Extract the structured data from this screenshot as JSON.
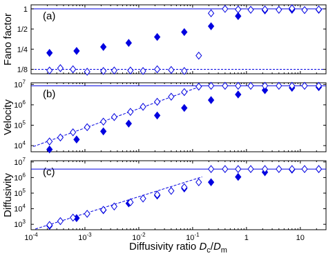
{
  "chart_data": [
    {
      "type": "scatter",
      "panel_label": "(a)",
      "ylabel": "Fano factor",
      "yscale": "log2",
      "ylim": [
        0.107,
        1.15
      ],
      "y_ticks": [
        1,
        0.5,
        0.25,
        0.125
      ],
      "y_tick_labels": [
        "1",
        "1/2",
        "1/4",
        "1/8"
      ],
      "reference_lines": [
        {
          "y": 1,
          "style": "solid",
          "color": "#0000e0"
        },
        {
          "y": 0.125,
          "style": "dashed",
          "color": "#0000e0"
        }
      ],
      "series": [
        {
          "marker": "filled-diamond",
          "color": "#0000e0",
          "x": [
            0.00022,
            0.0007,
            0.0022,
            0.0065,
            0.022,
            0.07,
            0.22,
            0.7,
            2.2,
            7,
            22
          ],
          "y": [
            0.22,
            0.235,
            0.27,
            0.31,
            0.38,
            0.45,
            0.55,
            0.78,
            0.95,
            0.97,
            0.97
          ]
        },
        {
          "marker": "open-diamond",
          "color": "#0000e0",
          "x": [
            0.00022,
            0.00035,
            0.0006,
            0.0011,
            0.0022,
            0.0035,
            0.007,
            0.012,
            0.022,
            0.04,
            0.07,
            0.13,
            0.22,
            0.4,
            0.7,
            1.2,
            2.2,
            4,
            7,
            12,
            22
          ],
          "y": [
            0.12,
            0.13,
            0.125,
            0.115,
            0.118,
            0.12,
            0.12,
            0.118,
            0.125,
            0.122,
            0.118,
            0.2,
            0.86,
            1.0,
            0.98,
            0.97,
            0.98,
            0.97,
            1.02,
            0.96,
            0.98
          ]
        }
      ]
    },
    {
      "type": "scatter",
      "panel_label": "(b)",
      "ylabel": "Velocity",
      "yscale": "log10",
      "ylim": [
        5000,
        12000000
      ],
      "y_ticks": [
        10000,
        100000,
        1000000,
        10000000
      ],
      "y_tick_labels": [
        {
          "base": "10",
          "exp": "4"
        },
        {
          "base": "10",
          "exp": "5"
        },
        {
          "base": "10",
          "exp": "6"
        },
        {
          "base": "10",
          "exp": "7"
        }
      ],
      "reference_lines": [
        {
          "y": 8500000,
          "style": "solid",
          "color": "#0000e0"
        }
      ],
      "fit_line": {
        "style": "dashed",
        "color": "#0000e0",
        "x": [
          0.00011,
          0.15
        ],
        "y": [
          9000,
          8500000
        ]
      },
      "series": [
        {
          "marker": "filled-diamond",
          "color": "#0000e0",
          "x": [
            0.00022,
            0.0007,
            0.0022,
            0.0065,
            0.022,
            0.07,
            0.22,
            0.7,
            2.2,
            7,
            22
          ],
          "y": [
            6500,
            20000,
            50000,
            120000,
            300000,
            700000,
            1700000,
            3200000,
            5200000,
            6800000,
            7300000
          ]
        },
        {
          "marker": "open-diamond",
          "color": "#0000e0",
          "x": [
            0.00022,
            0.00035,
            0.0006,
            0.0011,
            0.0022,
            0.0035,
            0.007,
            0.012,
            0.022,
            0.04,
            0.07,
            0.13,
            0.22,
            0.4,
            0.7,
            1.2,
            2.2,
            4,
            7,
            12,
            22
          ],
          "y": [
            16000,
            25000,
            45000,
            80000,
            150000,
            250000,
            450000,
            800000,
            1400000,
            2500000,
            4200000,
            7800000,
            8500000,
            8500000,
            8500000,
            8500000,
            8500000,
            8500000,
            8500000,
            8500000,
            8500000
          ]
        }
      ]
    },
    {
      "type": "scatter",
      "panel_label": "(c)",
      "ylabel": "Diffusivity",
      "yscale": "log10",
      "ylim": [
        450,
        12000000
      ],
      "y_ticks": [
        1000,
        10000,
        100000,
        1000000,
        10000000
      ],
      "y_tick_labels": [
        {
          "base": "10",
          "exp": "3"
        },
        {
          "base": "10",
          "exp": "4"
        },
        {
          "base": "10",
          "exp": "5"
        },
        {
          "base": "10",
          "exp": "6"
        },
        {
          "base": "10",
          "exp": "7"
        }
      ],
      "reference_lines": [
        {
          "y": 3500000,
          "style": "solid",
          "color": "#0000e0"
        }
      ],
      "fit_line": {
        "style": "dashed",
        "color": "#0000e0",
        "x": [
          0.00012,
          0.15
        ],
        "y": [
          500,
          1100000
        ]
      },
      "series": [
        {
          "marker": "filled-diamond",
          "color": "#0000e0",
          "x": [
            0.00022,
            0.0007,
            0.0022,
            0.0065,
            0.022,
            0.07,
            0.22,
            0.7,
            2.2,
            7,
            22
          ],
          "y": [
            800,
            2500,
            8000,
            22000,
            70000,
            200000,
            500000,
            1100000,
            2200000,
            3200000,
            3500000
          ]
        },
        {
          "marker": "open-diamond",
          "color": "#0000e0",
          "x": [
            0.00022,
            0.00035,
            0.0006,
            0.0011,
            0.0022,
            0.0035,
            0.007,
            0.012,
            0.022,
            0.04,
            0.07,
            0.13,
            0.22,
            0.4,
            0.7,
            1.2,
            2.2,
            4,
            7,
            12,
            22
          ],
          "y": [
            900,
            1600,
            2700,
            4700,
            8500,
            14000,
            26000,
            45000,
            80000,
            140000,
            240000,
            500000,
            3500000,
            3500000,
            3500000,
            3500000,
            3500000,
            3500000,
            3500000,
            3500000,
            3500000
          ]
        }
      ]
    }
  ],
  "x_axis": {
    "label_prefix": "Diffusivity ratio ",
    "label_num": "D",
    "label_num_sub": "c",
    "label_slash": "/",
    "label_den": "D",
    "label_den_sub": "m",
    "xscale": "log10",
    "xlim": [
      0.0001,
      30
    ],
    "ticks": [
      0.0001,
      0.001,
      0.01,
      0.1,
      1,
      10
    ],
    "tick_labels": [
      {
        "base": "10",
        "exp": "-4"
      },
      {
        "base": "10",
        "exp": "-3"
      },
      {
        "base": "10",
        "exp": "-2"
      },
      {
        "base": "10",
        "exp": "-1"
      },
      {
        "base": "1",
        "exp": ""
      },
      {
        "base": "10",
        "exp": ""
      }
    ]
  }
}
